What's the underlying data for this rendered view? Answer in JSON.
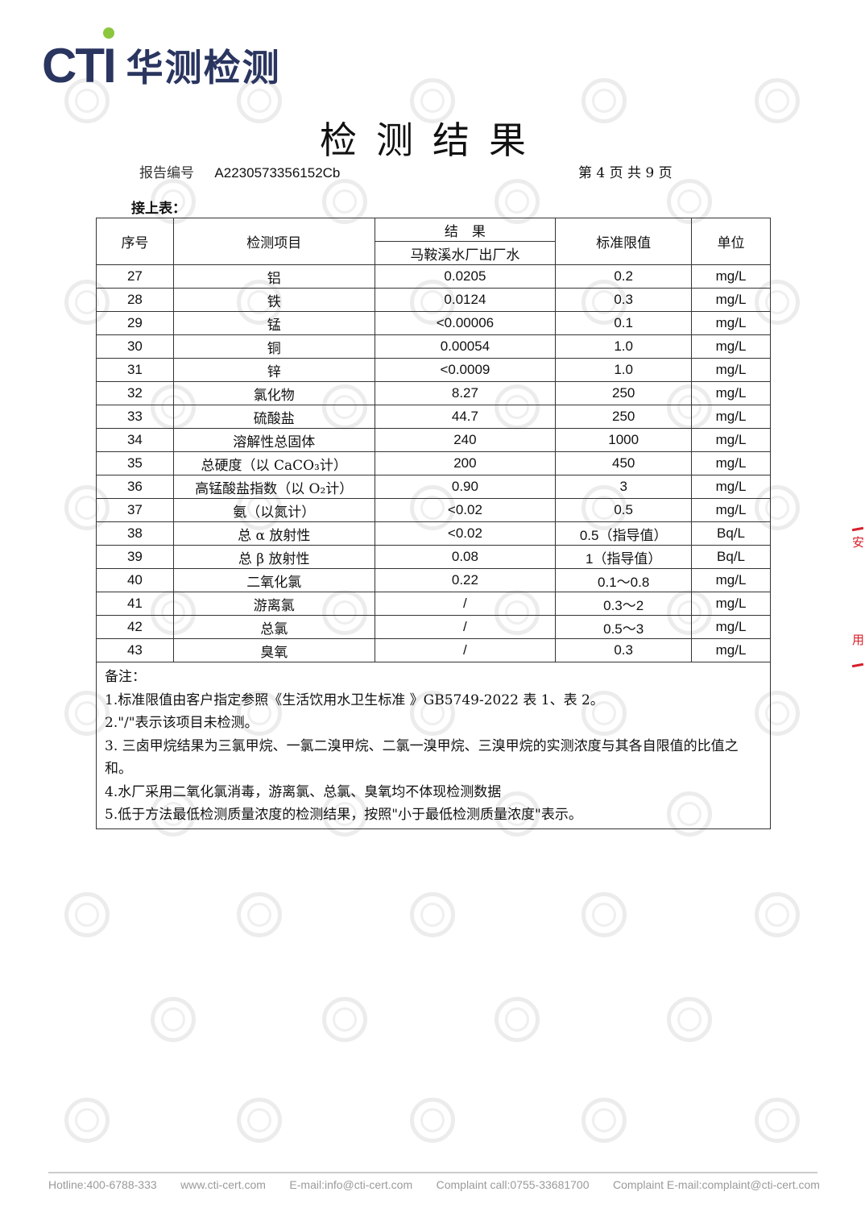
{
  "logo": {
    "en": "CTI",
    "cn": "华测检测",
    "brand_color": "#2a3560",
    "dot_color": "#8cc63f"
  },
  "title": "检测结果",
  "report_no_label": "报告编号",
  "report_no": "A2230573356152Cb",
  "page_info": "第 4 页 共 9 页",
  "continued_label": "接上表：",
  "table": {
    "headers": {
      "no": "序号",
      "item": "检测项目",
      "result": "结　果",
      "sample": "马鞍溪水厂出厂水",
      "limit": "标准限值",
      "unit": "单位"
    },
    "rows": [
      {
        "no": "27",
        "item": "铝",
        "result": "0.0205",
        "limit": "0.2",
        "unit": "mg/L"
      },
      {
        "no": "28",
        "item": "铁",
        "result": "0.0124",
        "limit": "0.3",
        "unit": "mg/L"
      },
      {
        "no": "29",
        "item": "锰",
        "result": "<0.00006",
        "limit": "0.1",
        "unit": "mg/L"
      },
      {
        "no": "30",
        "item": "铜",
        "result": "0.00054",
        "limit": "1.0",
        "unit": "mg/L"
      },
      {
        "no": "31",
        "item": "锌",
        "result": "<0.0009",
        "limit": "1.0",
        "unit": "mg/L"
      },
      {
        "no": "32",
        "item": "氯化物",
        "result": "8.27",
        "limit": "250",
        "unit": "mg/L"
      },
      {
        "no": "33",
        "item": "硫酸盐",
        "result": "44.7",
        "limit": "250",
        "unit": "mg/L"
      },
      {
        "no": "34",
        "item": "溶解性总固体",
        "result": "240",
        "limit": "1000",
        "unit": "mg/L"
      },
      {
        "no": "35",
        "item": "总硬度（以 CaCO₃计）",
        "result": "200",
        "limit": "450",
        "unit": "mg/L"
      },
      {
        "no": "36",
        "item": "高锰酸盐指数（以 O₂计）",
        "result": "0.90",
        "limit": "3",
        "unit": "mg/L"
      },
      {
        "no": "37",
        "item": "氨（以氮计）",
        "result": "<0.02",
        "limit": "0.5",
        "unit": "mg/L"
      },
      {
        "no": "38",
        "item": "总 α 放射性",
        "result": "<0.02",
        "limit": "0.5（指导值）",
        "unit": "Bq/L"
      },
      {
        "no": "39",
        "item": "总 β 放射性",
        "result": "0.08",
        "limit": "1（指导值）",
        "unit": "Bq/L"
      },
      {
        "no": "40",
        "item": "二氧化氯",
        "result": "0.22",
        "limit": "0.1～0.8",
        "unit": "mg/L"
      },
      {
        "no": "41",
        "item": "游离氯",
        "result": "/",
        "limit": "0.3～2",
        "unit": "mg/L"
      },
      {
        "no": "42",
        "item": "总氯",
        "result": "/",
        "limit": "0.5～3",
        "unit": "mg/L"
      },
      {
        "no": "43",
        "item": "臭氧",
        "result": "/",
        "limit": "0.3",
        "unit": "mg/L"
      }
    ]
  },
  "notes": {
    "label": "备注：",
    "items": [
      "1.标准限值由客户指定参照《生活饮用水卫生标准 》GB5749-2022 表 1、表 2。",
      "2.\"/\"表示该项目未检测。",
      "3. 三卤甲烷结果为三氯甲烷、一氯二溴甲烷、二氯一溴甲烷、三溴甲烷的实测浓度与其各自限值的比值之和。",
      "4.水厂采用二氧化氯消毒，游离氯、总氯、臭氧均不体现检测数据",
      "5.低于方法最低检测质量浓度的检测结果，按照\"小于最低检测质量浓度\"表示。"
    ]
  },
  "stamp": {
    "text": "安 用",
    "color": "#d6202a"
  },
  "footer": {
    "hotline": "Hotline:400-6788-333",
    "website": "www.cti-cert.com",
    "email": "E-mail:info@cti-cert.com",
    "complaint_call": "Complaint call:0755-33681700",
    "complaint_email": "Complaint E-mail:complaint@cti-cert.com"
  }
}
